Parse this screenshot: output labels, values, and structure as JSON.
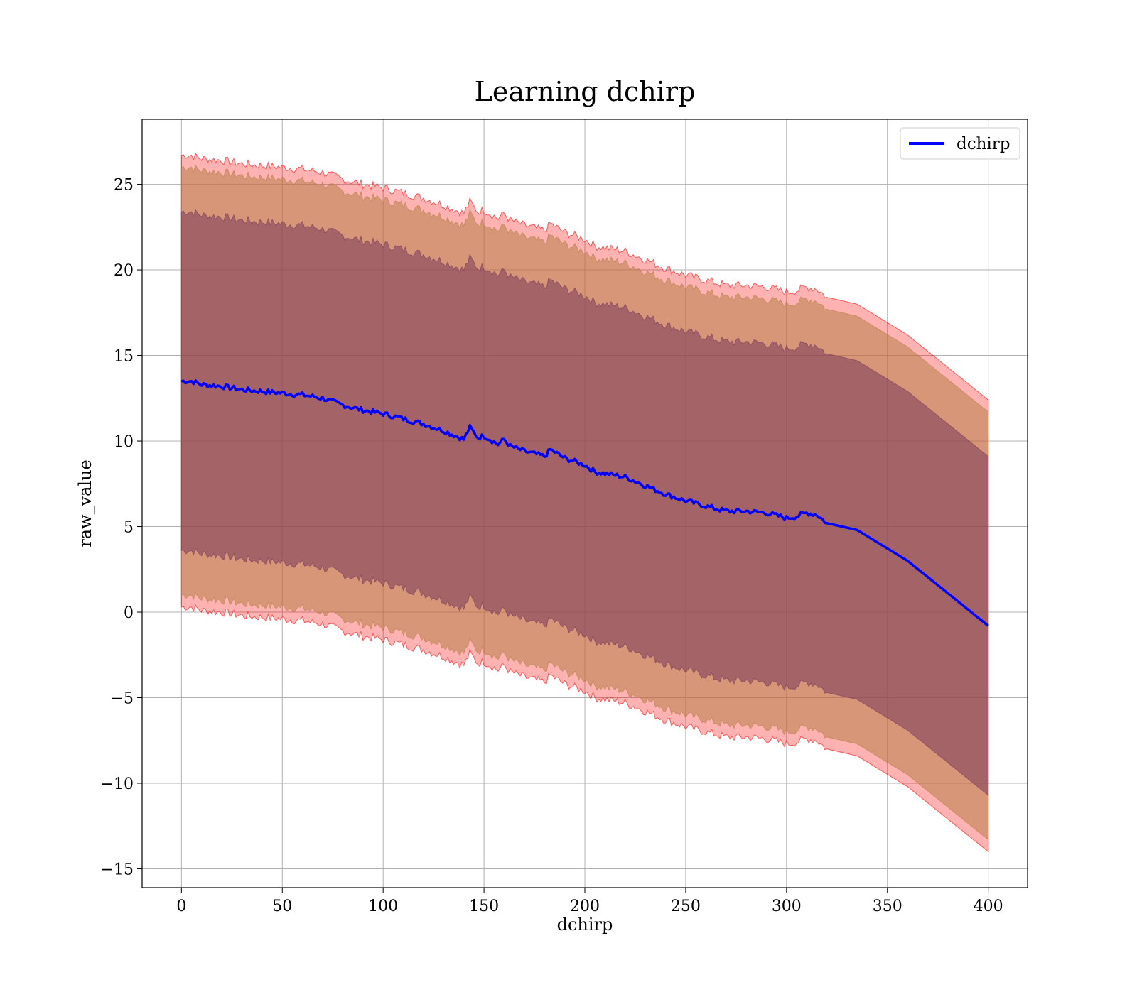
{
  "chart_data": {
    "type": "line",
    "title": "Learning dchirp",
    "xlabel": "dchirp",
    "ylabel": "raw_value",
    "xlim": [
      -19.5,
      419.5
    ],
    "ylim": [
      -16.1,
      28.8
    ],
    "xticks": [
      0,
      50,
      100,
      150,
      200,
      250,
      300,
      350,
      400
    ],
    "yticks": [
      -15,
      -10,
      -5,
      0,
      5,
      10,
      15,
      20,
      25
    ],
    "grid": true,
    "legend": {
      "position": "top-right",
      "entries": [
        "dchirp"
      ]
    },
    "colors": {
      "line": "#0000ff",
      "band": "#ff0000",
      "band_mid": "#b8804a",
      "band_inner": "#7a3a5a"
    },
    "series": [
      {
        "name": "dchirp",
        "x": [
          0,
          5,
          10,
          20,
          30,
          40,
          50,
          60,
          70,
          80,
          90,
          100,
          110,
          120,
          130,
          140,
          143,
          147,
          150,
          153,
          157,
          160,
          163,
          170,
          180,
          183,
          190,
          200,
          205,
          210,
          220,
          230,
          240,
          250,
          260,
          270,
          280,
          290,
          300,
          305,
          310,
          315,
          320,
          335,
          360,
          400
        ],
        "y": [
          13.5,
          13.5,
          13.3,
          13.2,
          13.0,
          12.9,
          12.8,
          12.7,
          12.5,
          12.1,
          11.8,
          11.6,
          11.3,
          11.0,
          10.6,
          10.1,
          10.8,
          10.2,
          10.3,
          10.1,
          9.8,
          10.1,
          9.7,
          9.4,
          9.1,
          9.5,
          9.0,
          8.6,
          8.2,
          8.1,
          7.9,
          7.4,
          6.9,
          6.5,
          6.2,
          5.9,
          5.9,
          5.8,
          5.5,
          5.6,
          5.8,
          5.7,
          5.2,
          4.8,
          3.0,
          -0.8
        ]
      }
    ],
    "bands": [
      {
        "sigma": 3,
        "half_width": [
          13.2,
          13.2,
          13.2,
          13.2,
          13.2,
          13.2,
          13.2,
          13.2,
          13.2,
          13.2,
          13.2,
          13.2,
          13.2,
          13.2,
          13.2,
          13.2,
          13.2,
          13.2,
          13.2,
          13.2,
          13.2,
          13.2,
          13.2,
          13.2,
          13.2,
          13.2,
          13.2,
          13.2,
          13.2,
          13.2,
          13.2,
          13.2,
          13.2,
          13.2,
          13.2,
          13.2,
          13.2,
          13.2,
          13.2,
          13.2,
          13.2,
          13.2,
          13.2,
          13.2,
          13.2,
          13.2
        ]
      },
      {
        "sigma": 2.8,
        "half_width": [
          12.5,
          12.5,
          12.5,
          12.5,
          12.5,
          12.5,
          12.5,
          12.5,
          12.5,
          12.5,
          12.5,
          12.5,
          12.5,
          12.5,
          12.5,
          12.5,
          12.5,
          12.5,
          12.5,
          12.5,
          12.5,
          12.5,
          12.5,
          12.5,
          12.5,
          12.5,
          12.5,
          12.5,
          12.5,
          12.5,
          12.5,
          12.5,
          12.5,
          12.5,
          12.5,
          12.5,
          12.5,
          12.5,
          12.5,
          12.5,
          12.5,
          12.5,
          12.5,
          12.5,
          12.5,
          12.5
        ]
      },
      {
        "sigma": 2.2,
        "half_width": [
          9.9,
          9.9,
          9.9,
          9.9,
          9.9,
          9.9,
          9.9,
          9.9,
          9.9,
          9.9,
          9.9,
          9.9,
          9.9,
          9.9,
          9.9,
          9.9,
          9.9,
          9.9,
          9.9,
          9.9,
          9.9,
          9.9,
          9.9,
          9.9,
          9.9,
          9.9,
          9.9,
          9.9,
          9.9,
          9.9,
          9.9,
          9.9,
          9.9,
          9.9,
          9.9,
          9.9,
          9.9,
          9.9,
          9.9,
          9.9,
          9.9,
          9.9,
          9.9,
          9.9,
          9.9,
          9.9
        ]
      }
    ]
  }
}
